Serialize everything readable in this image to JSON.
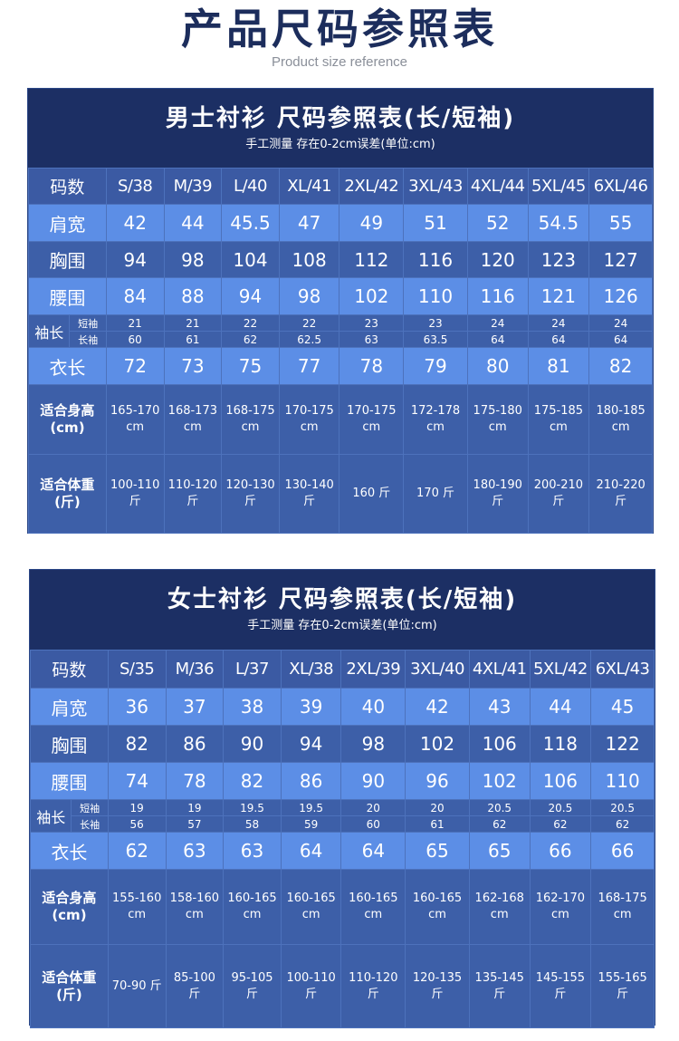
{
  "header": {
    "title": "产品尺码参照表",
    "subtitle": "Product size reference"
  },
  "men": {
    "title": "男士衬衫 尺码参照表(长/短袖)",
    "note": "手工测量 存在0-2cm误差(单位:cm)",
    "size_label": "码数",
    "sizes": [
      "S/38",
      "M/39",
      "L/40",
      "XL/41",
      "2XL/42",
      "3XL/43",
      "4XL/44",
      "5XL/45",
      "6XL/46"
    ],
    "shoulder_label": "肩宽",
    "shoulder": [
      "42",
      "44",
      "45.5",
      "47",
      "49",
      "51",
      "52",
      "54.5",
      "55"
    ],
    "chest_label": "胸围",
    "chest": [
      "94",
      "98",
      "104",
      "108",
      "112",
      "116",
      "120",
      "123",
      "127"
    ],
    "waist_label": "腰围",
    "waist": [
      "84",
      "88",
      "94",
      "98",
      "102",
      "110",
      "116",
      "121",
      "126"
    ],
    "sleeve_label": "袖长",
    "short_label": "短袖",
    "long_label": "长袖",
    "sleeve_short": [
      "21",
      "21",
      "22",
      "22",
      "23",
      "23",
      "24",
      "24",
      "24"
    ],
    "sleeve_long": [
      "60",
      "61",
      "62",
      "62.5",
      "63",
      "63.5",
      "64",
      "64",
      "64"
    ],
    "length_label": "衣长",
    "length": [
      "72",
      "73",
      "75",
      "77",
      "78",
      "79",
      "80",
      "81",
      "82"
    ],
    "height_label": "适合身高(cm)",
    "height": [
      "165-170 cm",
      "168-173 cm",
      "168-175 cm",
      "170-175 cm",
      "170-175 cm",
      "172-178 cm",
      "175-180 cm",
      "175-185 cm",
      "180-185 cm"
    ],
    "weight_label": "适合体重(斤)",
    "weight": [
      "100-110 斤",
      "110-120 斤",
      "120-130 斤",
      "130-140 斤",
      "160 斤",
      "170 斤",
      "180-190 斤",
      "200-210 斤",
      "210-220 斤"
    ]
  },
  "women": {
    "title": "女士衬衫 尺码参照表(长/短袖)",
    "note": "手工测量 存在0-2cm误差(单位:cm)",
    "size_label": "码数",
    "sizes": [
      "S/35",
      "M/36",
      "L/37",
      "XL/38",
      "2XL/39",
      "3XL/40",
      "4XL/41",
      "5XL/42",
      "6XL/43"
    ],
    "shoulder_label": "肩宽",
    "shoulder": [
      "36",
      "37",
      "38",
      "39",
      "40",
      "42",
      "43",
      "44",
      "45"
    ],
    "chest_label": "胸围",
    "chest": [
      "82",
      "86",
      "90",
      "94",
      "98",
      "102",
      "106",
      "118",
      "122"
    ],
    "waist_label": "腰围",
    "waist": [
      "74",
      "78",
      "82",
      "86",
      "90",
      "96",
      "102",
      "106",
      "110"
    ],
    "sleeve_label": "袖长",
    "short_label": "短袖",
    "long_label": "长袖",
    "sleeve_short": [
      "19",
      "19",
      "19.5",
      "19.5",
      "20",
      "20",
      "20.5",
      "20.5",
      "20.5"
    ],
    "sleeve_long": [
      "56",
      "57",
      "58",
      "59",
      "60",
      "61",
      "62",
      "62",
      "62"
    ],
    "length_label": "衣长",
    "length": [
      "62",
      "63",
      "63",
      "64",
      "64",
      "65",
      "65",
      "66",
      "66"
    ],
    "height_label": "适合身高(cm)",
    "height": [
      "155-160 cm",
      "158-160 cm",
      "160-165 cm",
      "160-165 cm",
      "160-165 cm",
      "160-165 cm",
      "162-168 cm",
      "162-170 cm",
      "168-175 cm"
    ],
    "weight_label": "适合体重(斤)",
    "weight": [
      "70-90 斤",
      "85-100 斤",
      "95-105 斤",
      "100-110 斤",
      "110-120 斤",
      "120-135 斤",
      "135-145 斤",
      "145-155 斤",
      "155-165 斤"
    ]
  }
}
